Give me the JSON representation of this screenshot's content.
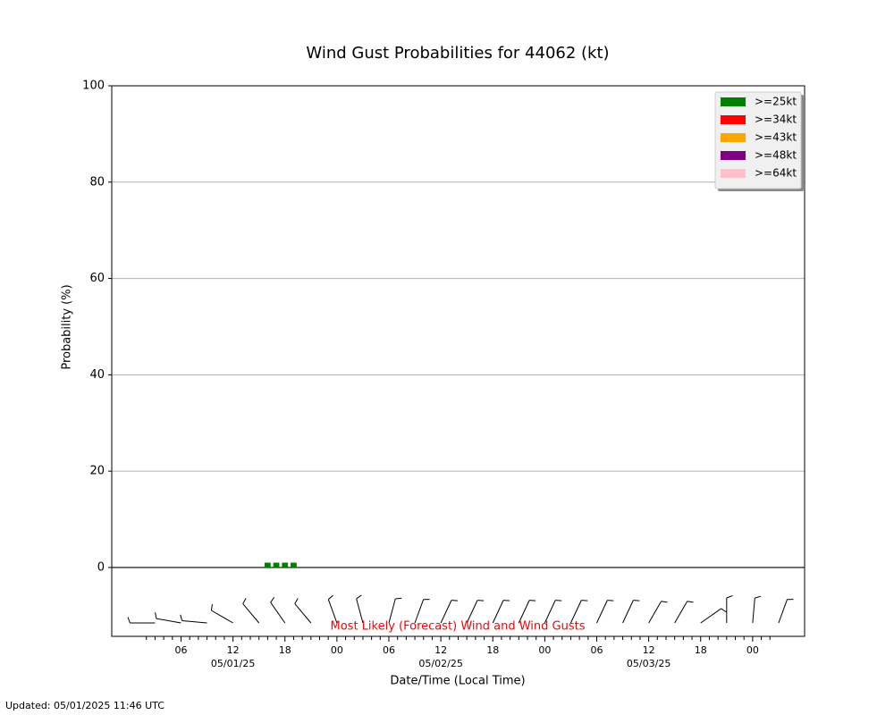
{
  "chart_data": {
    "type": "bar",
    "title": "Wind Gust Probabilities for 44062 (kt)",
    "y_label": "Probability (%)",
    "x_label": "Date/Time (Local Time)",
    "annotation": "Most Likely (Forecast) Wind and Wind Gusts",
    "footer": "Updated: 05/01/2025 11:46 UTC",
    "xlim": [
      -2,
      78
    ],
    "ylim": [
      -14.3,
      100
    ],
    "yticks": [
      0,
      20,
      40,
      60,
      80,
      100
    ],
    "xticks": [
      {
        "value": 6,
        "label": "06"
      },
      {
        "value": 12,
        "label": "12"
      },
      {
        "value": 18,
        "label": "18"
      },
      {
        "value": 24,
        "label": "00"
      },
      {
        "value": 30,
        "label": "06"
      },
      {
        "value": 36,
        "label": "12"
      },
      {
        "value": 42,
        "label": "18"
      },
      {
        "value": 48,
        "label": "00"
      },
      {
        "value": 54,
        "label": "06"
      },
      {
        "value": 60,
        "label": "12"
      },
      {
        "value": 66,
        "label": "18"
      },
      {
        "value": 72,
        "label": "00"
      }
    ],
    "xdates": [
      {
        "value": 12,
        "label": "05/01/25"
      },
      {
        "value": 36,
        "label": "05/02/25"
      },
      {
        "value": 60,
        "label": "05/03/25"
      }
    ],
    "xminorticks": [
      2,
      3,
      4,
      5,
      7,
      8,
      9,
      10,
      11,
      13,
      14,
      15,
      16,
      17,
      19,
      20,
      21,
      22,
      23,
      25,
      26,
      27,
      28,
      29,
      31,
      32,
      33,
      34,
      35,
      37,
      38,
      39,
      40,
      41,
      43,
      44,
      45,
      46,
      47,
      49,
      50,
      51,
      52,
      53,
      55,
      56,
      57,
      58,
      59,
      61,
      62,
      63,
      64,
      65,
      67,
      68,
      69,
      70,
      71,
      73,
      74
    ],
    "grid": true,
    "legend": "upper right",
    "x": [
      16,
      17,
      18,
      19
    ],
    "series": [
      {
        "name": ">=25kt",
        "color": "#008000",
        "values": [
          1,
          1,
          1,
          1
        ]
      },
      {
        "name": ">=34kt",
        "color": "#ff0000",
        "values": [
          0,
          0,
          0,
          0
        ]
      },
      {
        "name": ">=43kt",
        "color": "#ffa500",
        "values": [
          0,
          0,
          0,
          0
        ]
      },
      {
        "name": ">=48kt",
        "color": "#800080",
        "values": [
          0,
          0,
          0,
          0
        ]
      },
      {
        "name": ">=64kt",
        "color": "#ffc0cb",
        "values": [
          0,
          0,
          0,
          0
        ]
      }
    ],
    "wind_barbs": {
      "x": [
        3,
        6,
        9,
        12,
        15,
        18,
        21,
        24,
        27,
        30,
        33,
        36,
        39,
        42,
        45,
        48,
        51,
        54,
        57,
        60,
        63,
        66,
        69,
        72,
        75
      ],
      "direction": [
        270,
        280,
        275,
        300,
        320,
        325,
        320,
        340,
        345,
        15,
        20,
        25,
        25,
        25,
        25,
        25,
        25,
        25,
        25,
        30,
        30,
        55,
        0,
        5,
        20
      ]
    }
  }
}
